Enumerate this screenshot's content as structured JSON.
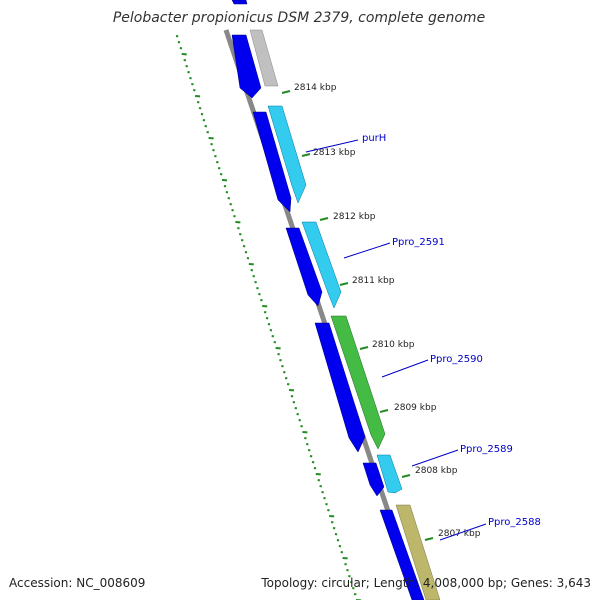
{
  "title": "Pelobacter propionicus DSM 2379, complete genome",
  "footer": {
    "accession": "Accession: NC_008609",
    "summary": "Topology: circular; Length: 4,008,000 bp; Genes: 3,643"
  },
  "kbp_labels": [
    "2814 kbp",
    "2813 kbp",
    "2812 kbp",
    "2811 kbp",
    "2810 kbp",
    "2809 kbp",
    "2808 kbp",
    "2807 kbp"
  ],
  "gene_labels": [
    "purH",
    "Ppro_2591",
    "Ppro_2590",
    "Ppro_2589",
    "Ppro_2588"
  ],
  "colors": {
    "backbone": "#888888",
    "reverse_strand": "#0000ee",
    "cds_cyan": "#33ccee",
    "cds_green": "#44bb44",
    "cds_grey": "#c0c0c0",
    "cds_khaki": "#bdb76b",
    "ticks": "#228b22",
    "gene_label": "#0000c8"
  }
}
